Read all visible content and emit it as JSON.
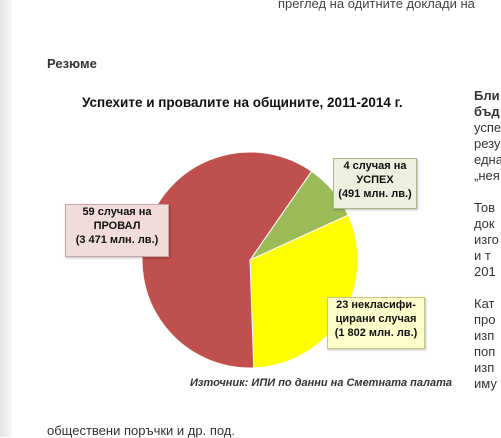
{
  "top_line": "преглед на одитните доклади на",
  "section_heading": "Резюме",
  "bottom_line": "обществени поръчки и др. под.",
  "chart_data": {
    "type": "pie",
    "title": "Успехите и провалите на общините, 2011-2014  г.",
    "source": "Източник: ИПИ по данни на Сметната палата",
    "slices": [
      {
        "key": "fail",
        "count": 59,
        "amount": 3471,
        "line1": "59 случая на",
        "line2": "ПРОВАЛ",
        "line3": "(3 471 млн. лв.)",
        "color": "#c0504d"
      },
      {
        "key": "ok",
        "count": 4,
        "amount": 491,
        "line1": "4 случая на",
        "line2": "УСПЕХ",
        "line3": "(491 млн. лв.)",
        "color": "#9bbb59"
      },
      {
        "key": "un",
        "count": 23,
        "amount": 1802,
        "line1": "23 некласифи-",
        "line2": "цирани случая",
        "line3": "(1 802 млн. лв.)",
        "color": "#ffff00"
      }
    ]
  },
  "right_column": [
    {
      "text": "Бли",
      "bold": true
    },
    {
      "text": "бъд",
      "bold": true
    },
    {
      "text": "успе",
      "bold": false
    },
    {
      "text": "резу",
      "bold": false
    },
    {
      "text": "една",
      "bold": false
    },
    {
      "text": "„нея",
      "bold": false
    },
    {
      "text": "",
      "bold": false
    },
    {
      "text": "Тов",
      "bold": false
    },
    {
      "text": "док",
      "bold": false
    },
    {
      "text": "изго",
      "bold": false
    },
    {
      "text": "и  т",
      "bold": false
    },
    {
      "text": "201",
      "bold": false
    },
    {
      "text": "",
      "bold": false
    },
    {
      "text": "Кат",
      "bold": false
    },
    {
      "text": "про",
      "bold": false
    },
    {
      "text": "изп",
      "bold": false
    },
    {
      "text": "поп",
      "bold": false
    },
    {
      "text": "изп",
      "bold": false
    },
    {
      "text": "иму",
      "bold": false
    }
  ]
}
